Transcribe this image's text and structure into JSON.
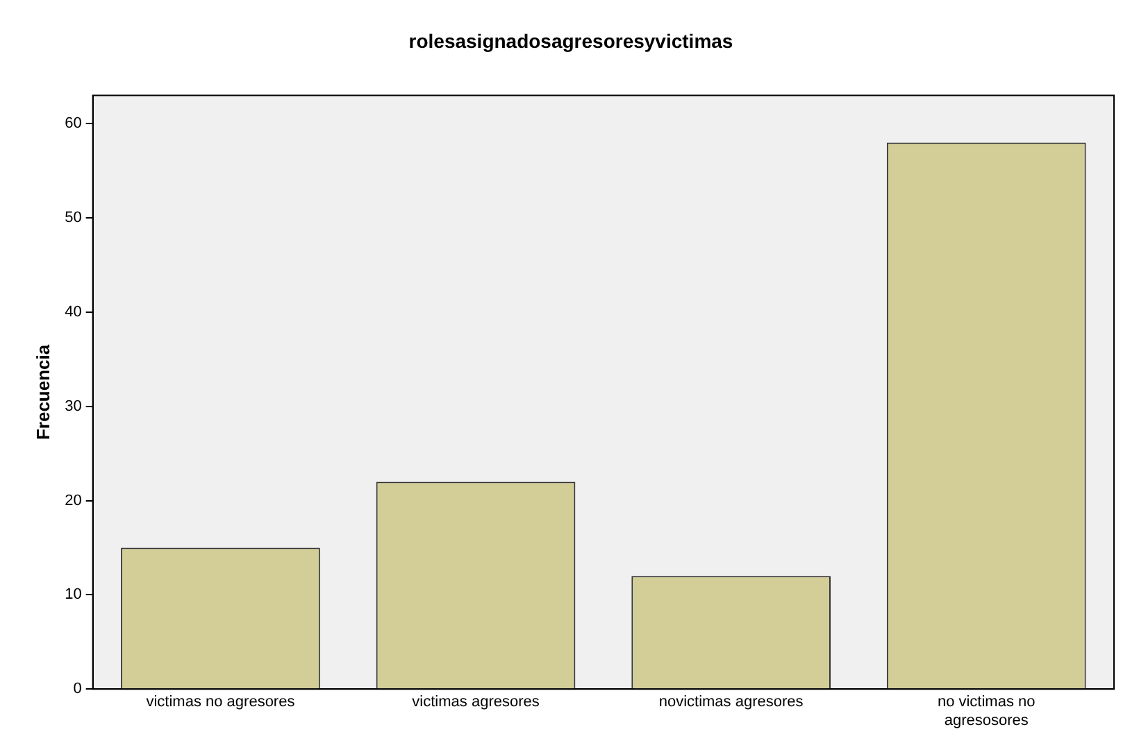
{
  "chart_data": {
    "type": "bar",
    "title": "rolesasignadosagresoresyvictimas",
    "ylabel": "Frecuencia",
    "categories": [
      "victimas no agresores",
      "victimas agresores",
      "novictimas agresores",
      "no victimas no agresosores"
    ],
    "values": [
      15,
      22,
      12,
      58
    ],
    "color": "#d3ce97",
    "ylim": [
      0,
      63
    ],
    "yticks": [
      0,
      10,
      20,
      30,
      40,
      50,
      60
    ],
    "grid": false,
    "legend": false
  }
}
